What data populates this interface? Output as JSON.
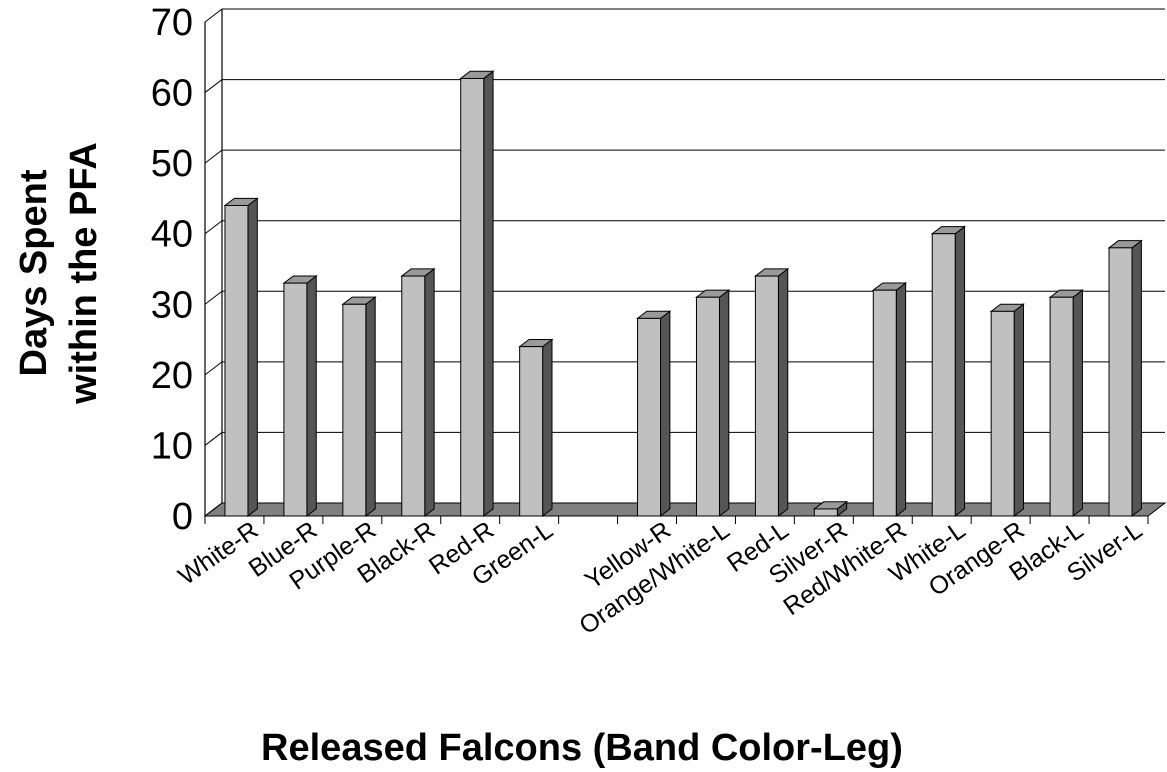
{
  "chart_data": {
    "type": "bar",
    "title": "",
    "xlabel": "Released Falcons (Band Color-Leg)",
    "ylabel_line1": "Days Spent",
    "ylabel_line2": "within the PFA",
    "ylim": [
      0,
      70
    ],
    "yticks": [
      "0",
      "10",
      "20",
      "30",
      "40",
      "50",
      "60",
      "70"
    ],
    "grid": true,
    "categories": [
      "White-R",
      "Blue-R",
      "Purple-R",
      "Black-R",
      "Red-R",
      "Green-L",
      "",
      "Yellow-R",
      "Orange/White-L",
      "Red-L",
      "Silver-R",
      "Red/White-R",
      "White-L",
      "Orange-R",
      "Black-L",
      "Silver-L"
    ],
    "values": [
      44,
      33,
      30,
      34,
      62,
      24,
      0,
      28,
      31,
      34,
      1,
      32,
      40,
      29,
      31,
      38
    ],
    "bar_color": "#c0c0c0",
    "bar_side_color": "#555555",
    "bar_top_color": "#9a9a9a",
    "floor_color": "#808080"
  }
}
